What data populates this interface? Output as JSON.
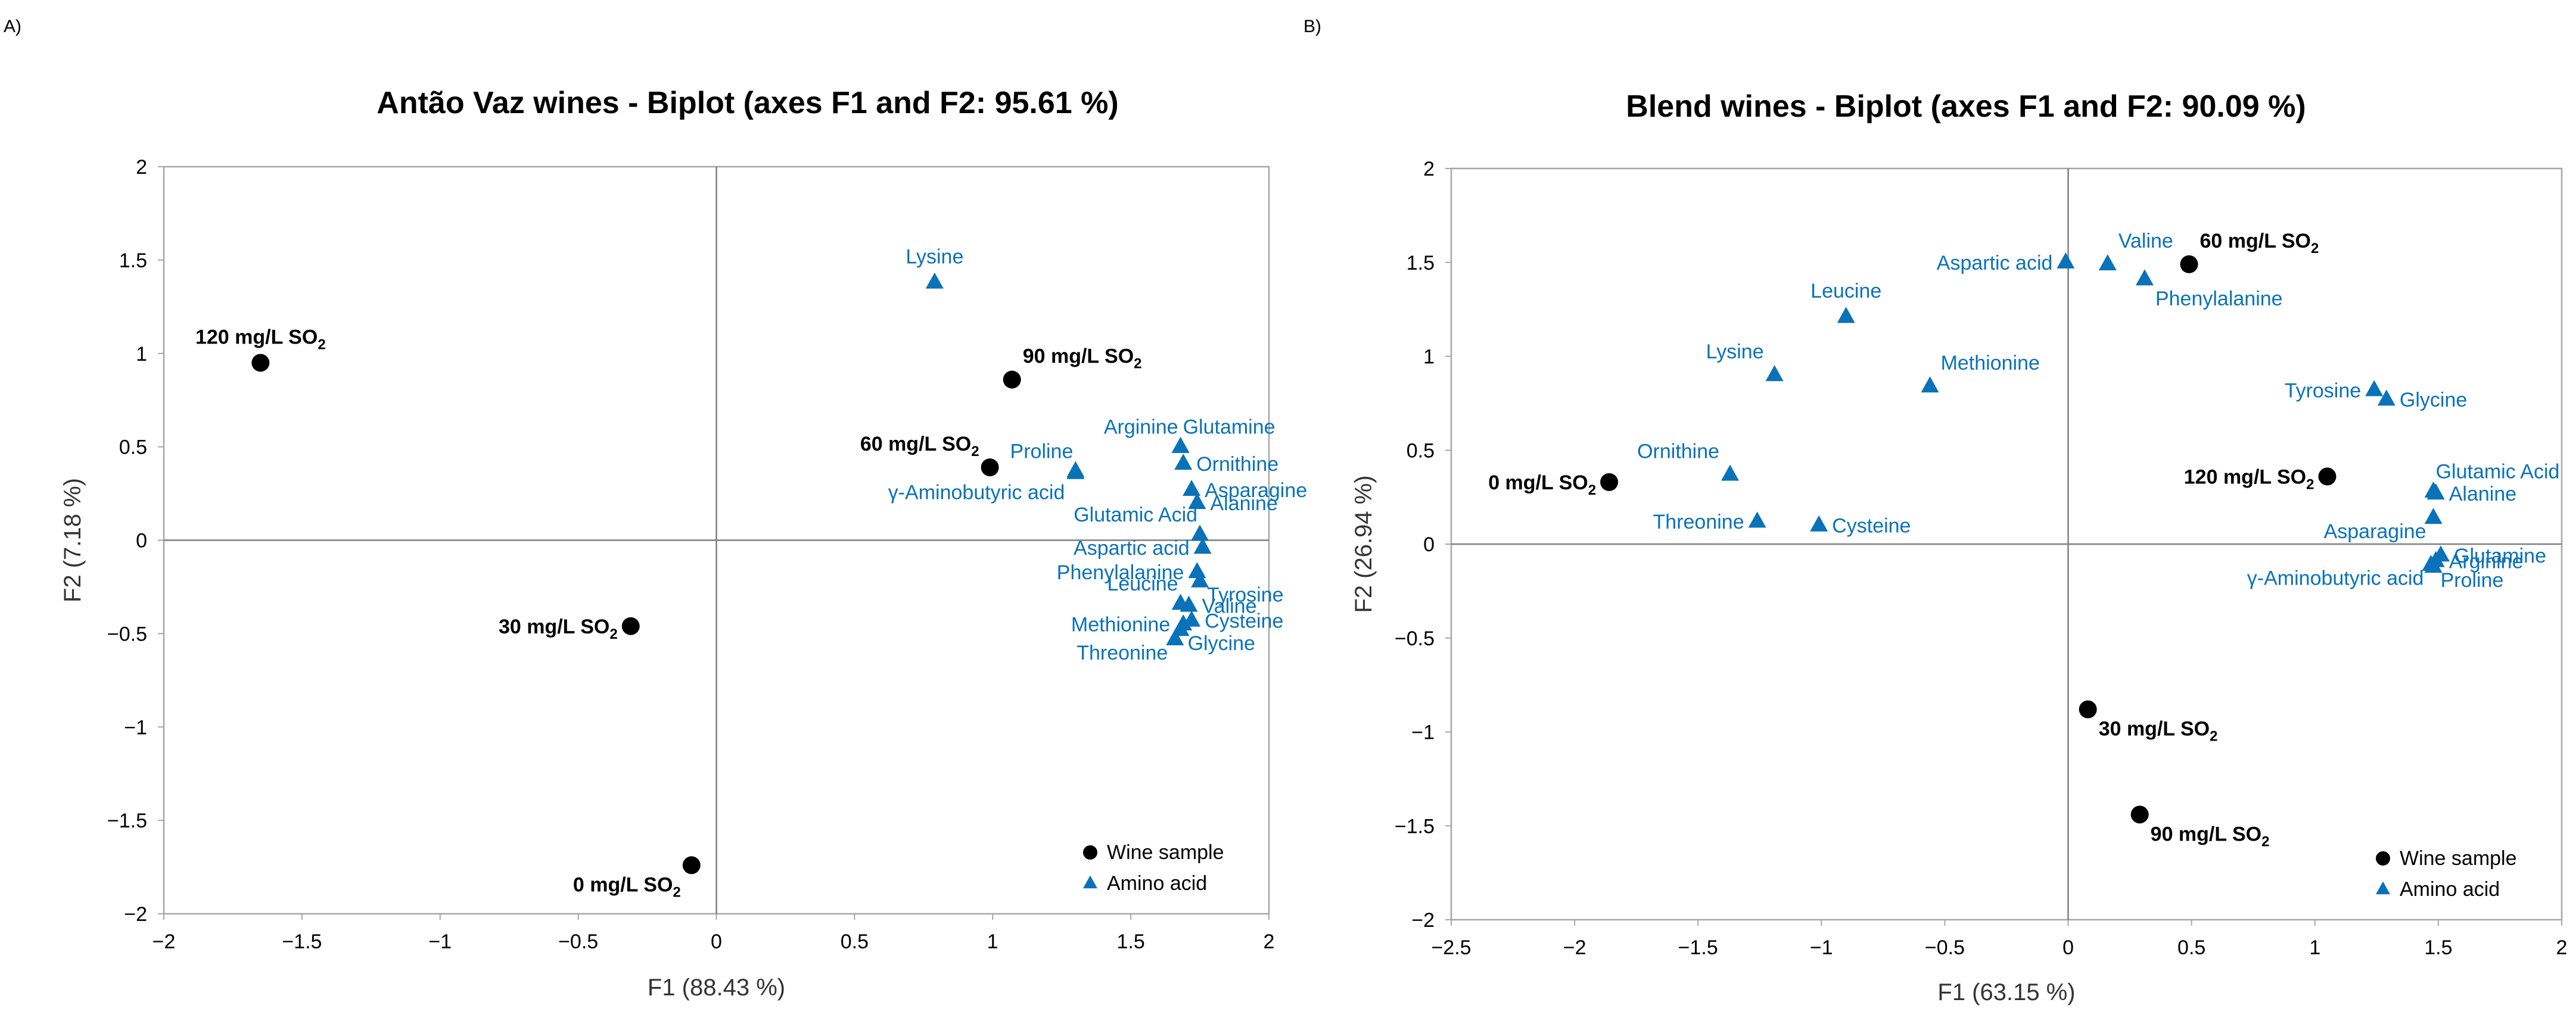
{
  "colors": {
    "amino": "#0a72b8",
    "wine": "#000000",
    "frame": "#a6a6a6",
    "zero_line": "#7f7f7f"
  },
  "chart_data": [
    {
      "panel": "A)",
      "type": "scatter",
      "title": "Antão Vaz wines - Biplot (axes F1 and F2: 95.61 %)",
      "xlabel": "F1 (88.43 %)",
      "ylabel": "F2 (7.18 %)",
      "xlim": [
        -2,
        2
      ],
      "ylim": [
        -2,
        2
      ],
      "xticks": [
        "−2",
        "−1.5",
        "−1",
        "−0.5",
        "0",
        "0.5",
        "1",
        "1.5",
        "2"
      ],
      "yticks": [
        "−2",
        "−1.5",
        "−1",
        "−0.5",
        "0",
        "0.5",
        "1",
        "1.5",
        "2"
      ],
      "legend": {
        "position": "bottom-right",
        "wine": "Wine sample",
        "amino": "Amino acid"
      },
      "wine_samples": [
        {
          "label": "120 mg/L SO",
          "sub": "2",
          "x": -1.65,
          "y": 0.95,
          "anchor": "above"
        },
        {
          "label": "90 mg/L SO",
          "sub": "2",
          "x": 1.07,
          "y": 0.86,
          "anchor": "above-right"
        },
        {
          "label": "60 mg/L SO",
          "sub": "2",
          "x": 0.99,
          "y": 0.39,
          "anchor": "above-left"
        },
        {
          "label": "30 mg/L SO",
          "sub": "2",
          "x": -0.31,
          "y": -0.46,
          "anchor": "left"
        },
        {
          "label": "0 mg/L SO",
          "sub": "2",
          "x": -0.09,
          "y": -1.74,
          "anchor": "below-left"
        }
      ],
      "amino_acids": [
        {
          "label": "Lysine",
          "x": 0.79,
          "y": 1.38,
          "anchor": "above"
        },
        {
          "label": "Proline",
          "x": 1.3,
          "y": 0.37,
          "anchor": "upper-left"
        },
        {
          "label": "γ-Aminobutyric acid",
          "x": 1.3,
          "y": 0.36,
          "anchor": "below-left"
        },
        {
          "label": "Arginine",
          "x": 1.68,
          "y": 0.5,
          "anchor": "upper-left"
        },
        {
          "label": "Glutamine",
          "x": 1.68,
          "y": 0.5,
          "anchor": "upper-right"
        },
        {
          "label": "Ornithine",
          "x": 1.69,
          "y": 0.41,
          "anchor": "right"
        },
        {
          "label": "Asparagine",
          "x": 1.72,
          "y": 0.27,
          "anchor": "right"
        },
        {
          "label": "Alanine",
          "x": 1.74,
          "y": 0.2,
          "anchor": "right"
        },
        {
          "label": "Glutamic Acid",
          "x": 1.75,
          "y": 0.03,
          "anchor": "upper-left"
        },
        {
          "label": "Aspartic acid",
          "x": 1.76,
          "y": -0.04,
          "anchor": "left"
        },
        {
          "label": "Phenylalanine",
          "x": 1.74,
          "y": -0.17,
          "anchor": "left"
        },
        {
          "label": "Tyrosine",
          "x": 1.75,
          "y": -0.22,
          "anchor": "lower-right"
        },
        {
          "label": "Leucine",
          "x": 1.68,
          "y": -0.34,
          "anchor": "upper-left"
        },
        {
          "label": "Valine",
          "x": 1.71,
          "y": -0.35,
          "anchor": "right"
        },
        {
          "label": "Cysteine",
          "x": 1.72,
          "y": -0.43,
          "anchor": "right"
        },
        {
          "label": "Methionine",
          "x": 1.69,
          "y": -0.45,
          "anchor": "left"
        },
        {
          "label": "Glycine",
          "x": 1.68,
          "y": -0.48,
          "anchor": "lower-right"
        },
        {
          "label": "Threonine",
          "x": 1.66,
          "y": -0.53,
          "anchor": "lower-left"
        }
      ]
    },
    {
      "panel": "B)",
      "type": "scatter",
      "title": "Blend wines - Biplot (axes F1 and F2: 90.09 %)",
      "xlabel": "F1 (63.15 %)",
      "ylabel": "F2 (26.94 %)",
      "xlim": [
        -2.5,
        2
      ],
      "ylim": [
        -2,
        2
      ],
      "xticks": [
        "−2.5",
        "−2",
        "−1.5",
        "−1",
        "−0.5",
        "0",
        "0.5",
        "1",
        "1.5",
        "2"
      ],
      "yticks": [
        "−2",
        "−1.5",
        "−1",
        "−0.5",
        "0",
        "0.5",
        "1",
        "1.5",
        "2"
      ],
      "legend": {
        "position": "bottom-right",
        "wine": "Wine sample",
        "amino": "Amino acid"
      },
      "wine_samples": [
        {
          "label": "60 mg/L SO",
          "sub": "2",
          "x": 0.49,
          "y": 1.49,
          "anchor": "above-right"
        },
        {
          "label": "0 mg/L SO",
          "sub": "2",
          "x": -1.86,
          "y": 0.33,
          "anchor": "left"
        },
        {
          "label": "120 mg/L SO",
          "sub": "2",
          "x": 1.05,
          "y": 0.36,
          "anchor": "left"
        },
        {
          "label": "30 mg/L SO",
          "sub": "2",
          "x": 0.08,
          "y": -0.88,
          "anchor": "below-right"
        },
        {
          "label": "90 mg/L SO",
          "sub": "2",
          "x": 0.29,
          "y": -1.44,
          "anchor": "below-right"
        }
      ],
      "amino_acids": [
        {
          "label": "Aspartic acid",
          "x": -0.01,
          "y": 1.5,
          "anchor": "left"
        },
        {
          "label": "Valine",
          "x": 0.16,
          "y": 1.49,
          "anchor": "above-right"
        },
        {
          "label": "Phenylalanine",
          "x": 0.31,
          "y": 1.41,
          "anchor": "below-right"
        },
        {
          "label": "Leucine",
          "x": -0.9,
          "y": 1.21,
          "anchor": "above"
        },
        {
          "label": "Lysine",
          "x": -1.19,
          "y": 0.9,
          "anchor": "above-left"
        },
        {
          "label": "Methionine",
          "x": -0.56,
          "y": 0.84,
          "anchor": "above-right"
        },
        {
          "label": "Tyrosine",
          "x": 1.24,
          "y": 0.82,
          "anchor": "left"
        },
        {
          "label": "Glycine",
          "x": 1.29,
          "y": 0.77,
          "anchor": "right"
        },
        {
          "label": "Ornithine",
          "x": -1.37,
          "y": 0.37,
          "anchor": "above-left"
        },
        {
          "label": "Threonine",
          "x": -1.26,
          "y": 0.12,
          "anchor": "left"
        },
        {
          "label": "Cysteine",
          "x": -1.01,
          "y": 0.1,
          "anchor": "right"
        },
        {
          "label": "Glutamic Acid",
          "x": 1.48,
          "y": 0.28,
          "anchor": "upper-right"
        },
        {
          "label": "Alanine",
          "x": 1.49,
          "y": 0.27,
          "anchor": "right"
        },
        {
          "label": "Asparagine",
          "x": 1.48,
          "y": 0.14,
          "anchor": "lower-left"
        },
        {
          "label": "Glutamine",
          "x": 1.51,
          "y": -0.06,
          "anchor": "right"
        },
        {
          "label": "Arginine",
          "x": 1.49,
          "y": -0.09,
          "anchor": "right"
        },
        {
          "label": "γ-Aminobutyric acid",
          "x": 1.47,
          "y": -0.11,
          "anchor": "lower-left"
        },
        {
          "label": "Proline",
          "x": 1.48,
          "y": -0.12,
          "anchor": "lower-right"
        }
      ]
    }
  ]
}
